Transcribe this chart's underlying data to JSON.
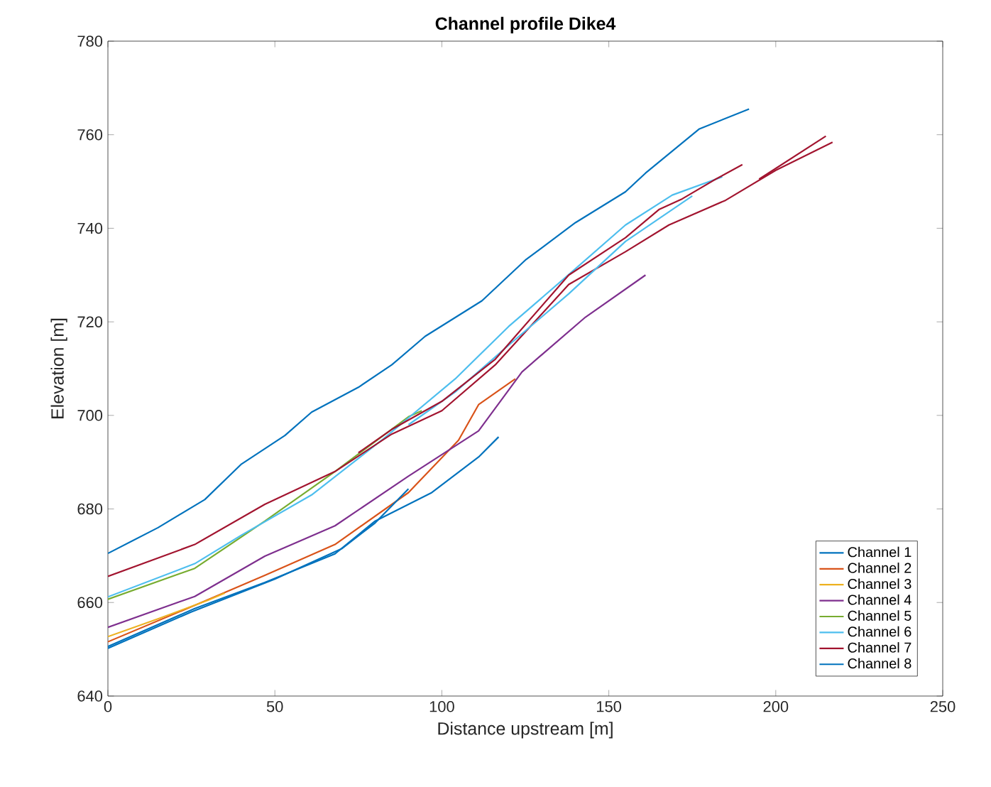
{
  "chart_data": {
    "type": "line",
    "title": "Channel profile Dike4",
    "xlabel": "Distance upstream [m]",
    "ylabel": "Elevation [m]",
    "xlim": [
      0,
      250
    ],
    "ylim": [
      640,
      780
    ],
    "xticks": [
      0,
      50,
      100,
      150,
      200,
      250
    ],
    "yticks": [
      640,
      660,
      680,
      700,
      720,
      740,
      760,
      780
    ],
    "grid": false,
    "legend": "bottom right",
    "marker": "none",
    "line_style": "solid",
    "series": [
      {
        "name": "Channel 1",
        "color": "#0072bd",
        "x": [
          0,
          15,
          29,
          40,
          53,
          61,
          75,
          85,
          95,
          112,
          125,
          140,
          155,
          161,
          177,
          192
        ],
        "values": [
          670.5,
          676,
          682,
          689.6,
          695.7,
          700.7,
          706,
          710.8,
          716.9,
          724.5,
          733.2,
          741.2,
          747.8,
          751.8,
          761.2,
          765.5
        ]
      },
      {
        "name": "Channel 2",
        "color": "#d95319",
        "x": [
          0,
          26,
          47,
          68,
          90,
          105,
          111,
          122
        ],
        "values": [
          651.6,
          659.4,
          665.8,
          672.4,
          683.5,
          694.7,
          702.3,
          707.8
        ]
      },
      {
        "name": "Channel 3",
        "color": "#edb120",
        "x": [
          0,
          15,
          30,
          35
        ],
        "values": [
          652.7,
          656.5,
          660.5,
          662
        ]
      },
      {
        "name": "Channel 4",
        "color": "#7e2f8e",
        "x": [
          0,
          26,
          47,
          68,
          90,
          111,
          124,
          129,
          143,
          161
        ],
        "values": [
          654.7,
          661.3,
          669.9,
          676.4,
          687,
          696.7,
          709.3,
          712.4,
          721,
          730
        ]
      },
      {
        "name": "Channel 5",
        "color": "#77ac30",
        "x": [
          0,
          26,
          47,
          68,
          90,
          94
        ],
        "values": [
          660.7,
          667.3,
          677.4,
          688,
          699.7,
          701
        ]
      },
      {
        "name": "Channel 6",
        "color": "#4dbeee",
        "x": [
          0,
          26,
          40,
          61,
          82,
          104,
          120,
          138,
          155,
          169,
          184
        ],
        "values": [
          661.2,
          668.3,
          674.4,
          683,
          694.7,
          707.8,
          719,
          730.1,
          740.7,
          747.1,
          751
        ]
      },
      {
        "name": "Channel 7",
        "color": "#a2142f",
        "x": [
          0,
          26,
          47,
          68,
          85,
          100,
          116,
          138,
          155,
          168,
          185,
          200,
          217
        ],
        "values": [
          665.6,
          672.4,
          681,
          688,
          696,
          701,
          710.8,
          728,
          735,
          740.7,
          746,
          752.4,
          758.4
        ]
      },
      {
        "name": "Channel 8",
        "color": "#0072bd",
        "x": [
          0,
          26,
          47,
          68,
          80,
          97,
          111,
          117
        ],
        "values": [
          650.6,
          658.7,
          664.3,
          670.4,
          677.4,
          683.5,
          691.1,
          695.4
        ]
      },
      {
        "color": "#0072bd",
        "x": [
          0,
          25,
          50,
          70,
          80,
          90
        ],
        "values": [
          650.2,
          658,
          665,
          671.5,
          677,
          684.3
        ]
      },
      {
        "color": "#4dbeee",
        "x": [
          90,
          104,
          120,
          138,
          155,
          175
        ],
        "values": [
          698,
          705,
          715,
          726,
          737.2,
          746.9
        ]
      },
      {
        "color": "#a2142f",
        "x": [
          75,
          85,
          100,
          116,
          138,
          155,
          165,
          172,
          182,
          190
        ],
        "values": [
          692,
          697,
          703,
          712,
          730,
          738,
          744,
          746.3,
          750.5,
          753.6
        ]
      },
      {
        "color": "#a2142f",
        "x": [
          195,
          215
        ],
        "values": [
          750.5,
          759.7
        ]
      }
    ]
  }
}
